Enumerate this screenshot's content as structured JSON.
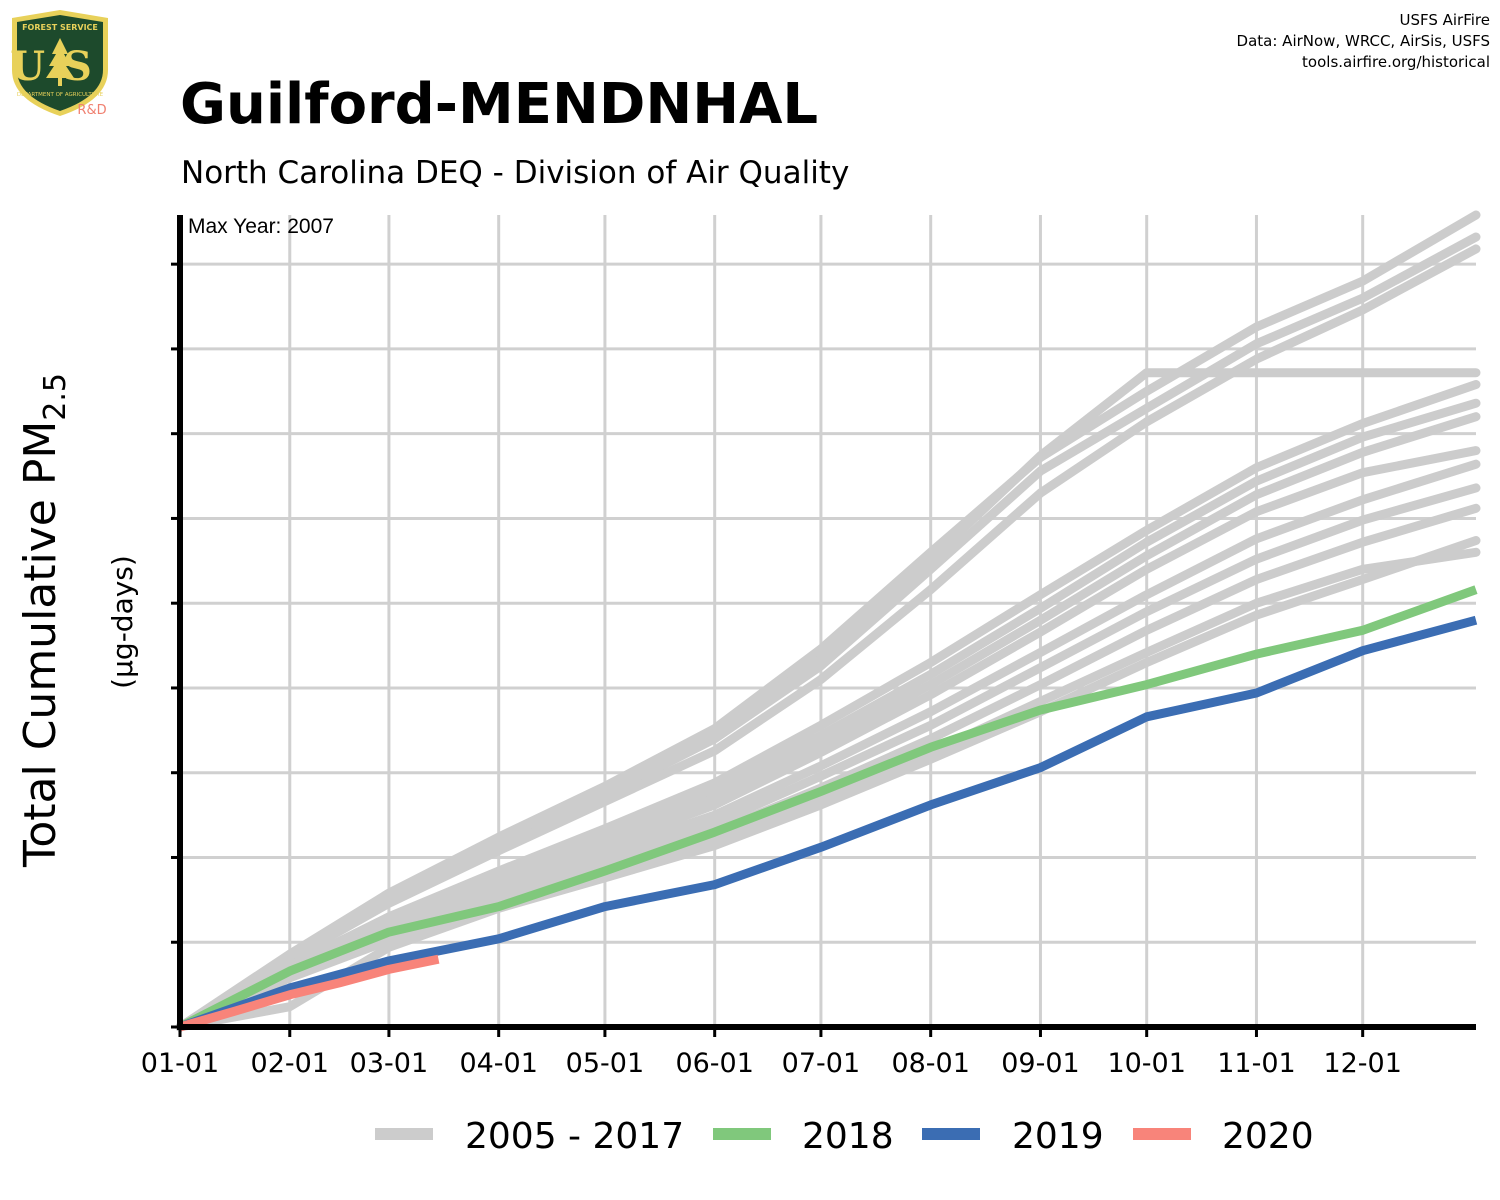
{
  "header": {
    "title": "Guilford-MENDNHAL",
    "subtitle": "North Carolina DEQ - Division of Air Quality"
  },
  "credits": {
    "line1": "USFS AirFire",
    "line2": "Data: AirNow, WRCC, AirSis, USFS",
    "line3": "tools.airfire.org/historical"
  },
  "logo": {
    "top_text": "FOREST SERVICE",
    "letters": "US",
    "bottom_text": "DEPARTMENT OF AGRICULTURE",
    "tag": "R&D"
  },
  "colors": {
    "historical": "#cccccc",
    "y2018": "#80c87c",
    "y2019": "#3b6db3",
    "y2020": "#f8847a",
    "grid": "#d0d0d0",
    "axis": "#000000",
    "logo_green": "#1d4a2c",
    "logo_gold": "#e8d15a",
    "logo_red": "#f08070"
  },
  "chart_data": {
    "type": "line",
    "annotation": "Max Year: 2007",
    "ylabel_main": "Total Cumulative PM",
    "ylabel_sub": "2.5",
    "ylabel_units": "(µg-days)",
    "x_tick_labels": [
      "01-01",
      "02-01",
      "03-01",
      "04-01",
      "05-01",
      "06-01",
      "07-01",
      "08-01",
      "09-01",
      "10-01",
      "11-01",
      "12-01"
    ],
    "x_tick_days": [
      0,
      31,
      59,
      90,
      120,
      151,
      181,
      212,
      243,
      273,
      304,
      334
    ],
    "xlim": [
      0,
      366
    ],
    "ylim": [
      0,
      4790
    ],
    "y_tick_values": [
      500,
      1000,
      1500,
      2000,
      2500,
      3000,
      3500,
      4000,
      4500
    ],
    "grid": true,
    "legend_position": "bottom",
    "legend": [
      "2005 - 2017",
      "2018",
      "2019",
      "2020"
    ],
    "historical_series": [
      {
        "x": [
          0,
          31,
          59,
          90,
          120,
          151,
          181,
          212,
          243,
          273,
          304,
          334,
          366
        ],
        "y": [
          0,
          430,
          790,
          1120,
          1420,
          1760,
          2230,
          2800,
          3360,
          3750,
          4130,
          4400,
          4790
        ]
      },
      {
        "x": [
          0,
          31,
          59,
          90,
          120,
          151,
          181,
          212,
          243,
          273,
          304,
          334,
          366
        ],
        "y": [
          0,
          410,
          750,
          1080,
          1370,
          1700,
          2130,
          2700,
          3280,
          3650,
          4030,
          4300,
          4660
        ]
      },
      {
        "x": [
          0,
          31,
          59,
          90,
          120,
          151,
          181,
          212,
          243,
          273,
          304,
          334,
          366
        ],
        "y": [
          0,
          400,
          730,
          1040,
          1330,
          1630,
          2050,
          2580,
          3150,
          3570,
          3940,
          4230,
          4590
        ]
      },
      {
        "x": [
          0,
          31,
          59,
          90,
          120,
          151,
          181,
          212,
          243,
          273,
          304,
          334,
          366
        ],
        "y": [
          0,
          420,
          770,
          1110,
          1400,
          1720,
          2170,
          2760,
          3370,
          3860,
          3860,
          3860,
          3860
        ]
      },
      {
        "x": [
          0,
          31,
          59,
          90,
          120,
          151,
          181,
          212,
          243,
          273,
          304,
          334,
          366
        ],
        "y": [
          0,
          360,
          650,
          920,
          1170,
          1440,
          1780,
          2150,
          2550,
          2930,
          3300,
          3560,
          3790
        ]
      },
      {
        "x": [
          0,
          31,
          59,
          90,
          120,
          151,
          181,
          212,
          243,
          273,
          304,
          334,
          366
        ],
        "y": [
          0,
          350,
          630,
          890,
          1130,
          1390,
          1720,
          2080,
          2470,
          2860,
          3220,
          3480,
          3680
        ]
      },
      {
        "x": [
          0,
          31,
          59,
          90,
          120,
          151,
          181,
          212,
          243,
          273,
          304,
          334,
          366
        ],
        "y": [
          0,
          340,
          610,
          860,
          1100,
          1350,
          1670,
          2020,
          2400,
          2780,
          3140,
          3390,
          3600
        ]
      },
      {
        "x": [
          0,
          31,
          59,
          90,
          120,
          151,
          181,
          212,
          243,
          273,
          304,
          334,
          366
        ],
        "y": [
          0,
          330,
          590,
          840,
          1070,
          1310,
          1620,
          1960,
          2330,
          2700,
          3040,
          3270,
          3400
        ]
      },
      {
        "x": [
          0,
          31,
          59,
          90,
          120,
          151,
          181,
          212,
          243,
          273,
          304,
          334,
          366
        ],
        "y": [
          0,
          320,
          570,
          810,
          1030,
          1250,
          1540,
          1860,
          2210,
          2550,
          2880,
          3110,
          3320
        ]
      },
      {
        "x": [
          0,
          31,
          59,
          90,
          120,
          151,
          181,
          212,
          243,
          273,
          304,
          334,
          366
        ],
        "y": [
          0,
          310,
          550,
          780,
          990,
          1200,
          1480,
          1780,
          2120,
          2450,
          2760,
          2990,
          3180
        ]
      },
      {
        "x": [
          0,
          31,
          59,
          90,
          120,
          151,
          181,
          212,
          243,
          273,
          304,
          334,
          366
        ],
        "y": [
          0,
          300,
          530,
          750,
          950,
          1150,
          1410,
          1700,
          2020,
          2340,
          2640,
          2860,
          3060
        ]
      },
      {
        "x": [
          0,
          31,
          59,
          90,
          120,
          151,
          181,
          212,
          243,
          273,
          304,
          334,
          366
        ],
        "y": [
          0,
          290,
          510,
          720,
          910,
          1100,
          1350,
          1620,
          1920,
          2210,
          2500,
          2700,
          2800
        ]
      },
      {
        "x": [
          0,
          31,
          59,
          90,
          120,
          151,
          181,
          212,
          243,
          273,
          304,
          334,
          366
        ],
        "y": [
          0,
          120,
          470,
          700,
          880,
          1070,
          1310,
          1580,
          1860,
          2150,
          2430,
          2640,
          2870
        ]
      }
    ],
    "series": [
      {
        "name": "2018",
        "x": [
          0,
          31,
          59,
          90,
          120,
          151,
          181,
          212,
          243,
          273,
          304,
          334,
          366
        ],
        "y": [
          0,
          330,
          560,
          710,
          920,
          1150,
          1390,
          1650,
          1870,
          2020,
          2200,
          2340,
          2580
        ]
      },
      {
        "name": "2019",
        "x": [
          0,
          31,
          59,
          90,
          120,
          151,
          181,
          212,
          243,
          273,
          304,
          334,
          366
        ],
        "y": [
          0,
          230,
          390,
          520,
          710,
          840,
          1060,
          1310,
          1530,
          1830,
          1970,
          2220,
          2400
        ]
      },
      {
        "name": "2020",
        "x": [
          0,
          15,
          31,
          45,
          59,
          73
        ],
        "y": [
          0,
          90,
          190,
          260,
          340,
          400
        ]
      }
    ]
  }
}
